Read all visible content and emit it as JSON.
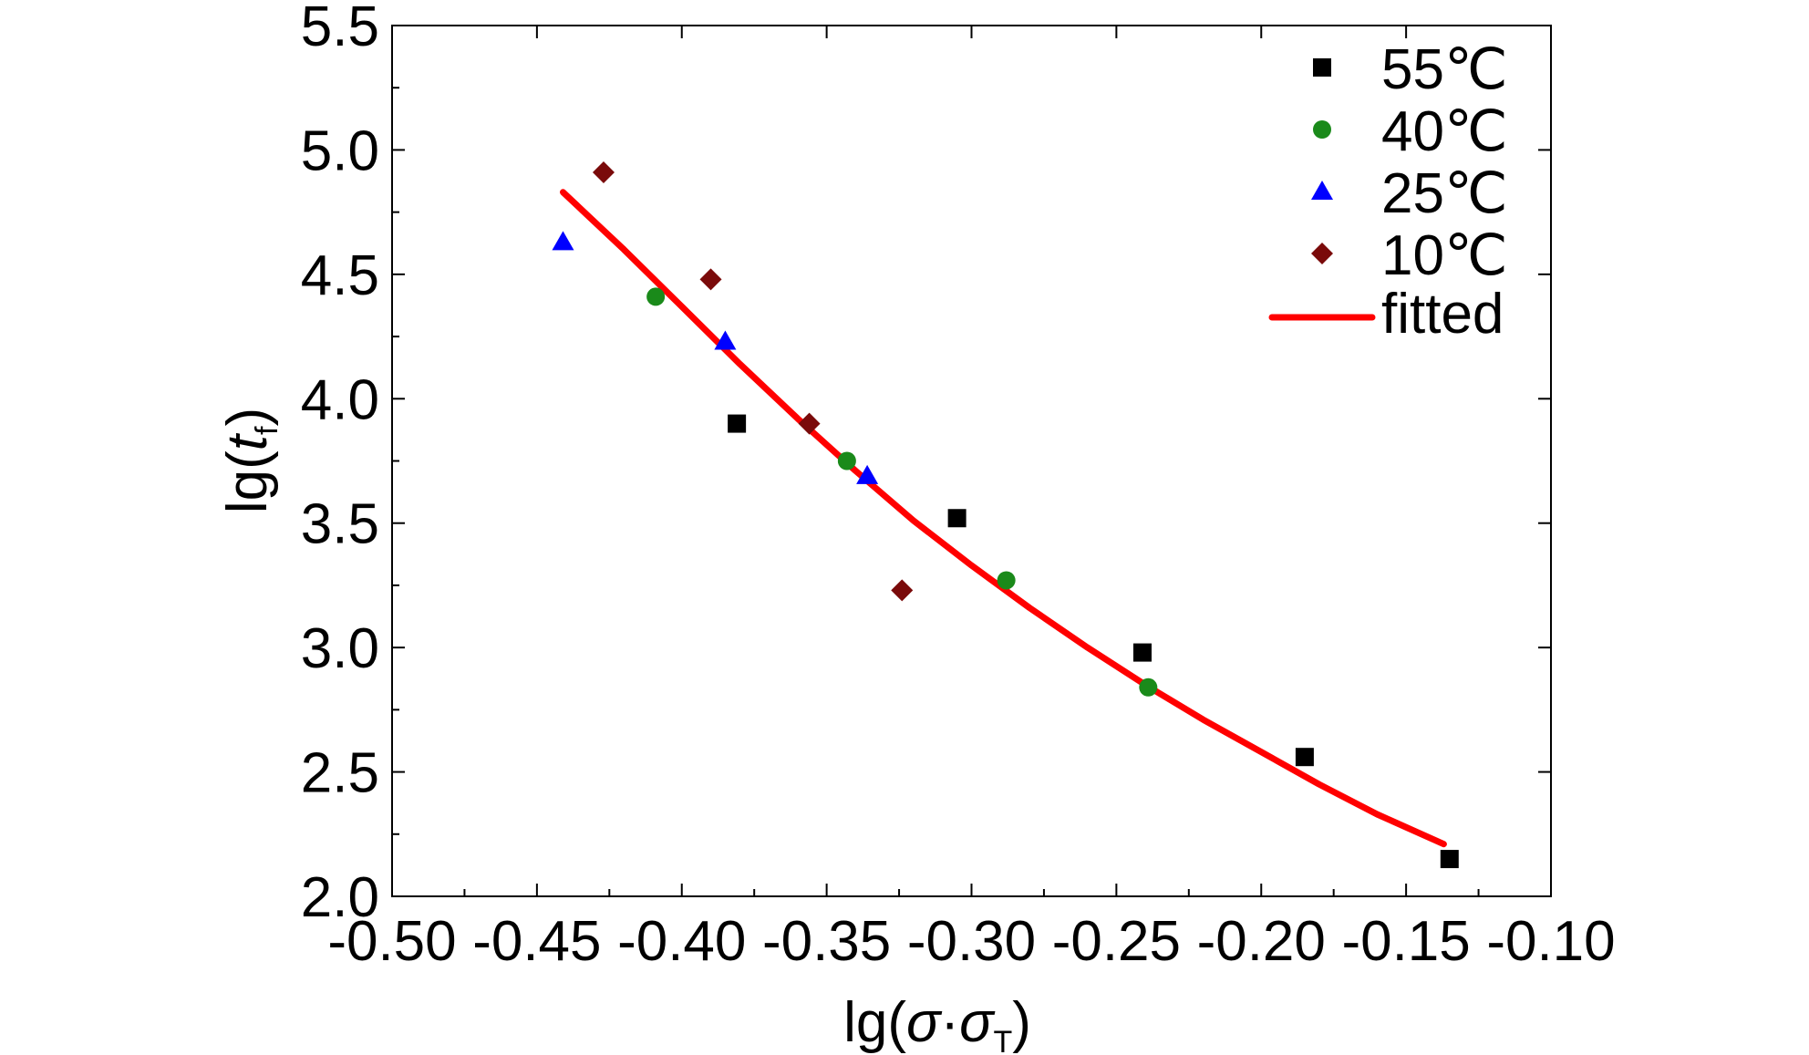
{
  "chart_data": {
    "type": "scatter",
    "xlabel": {
      "prefix": "lg(",
      "var1": "σ",
      "dot": "·",
      "var2": "σ",
      "sub": "T",
      "suffix": ")"
    },
    "ylabel": {
      "prefix": "lg(",
      "var": "t",
      "sub": "f",
      "suffix": ")"
    },
    "xlim": [
      -0.5,
      -0.1
    ],
    "ylim": [
      2.0,
      5.5
    ],
    "xticks": [
      -0.5,
      -0.45,
      -0.4,
      -0.35,
      -0.3,
      -0.25,
      -0.2,
      -0.15,
      -0.1
    ],
    "xtick_labels": [
      "-0.50",
      "-0.45",
      "-0.40",
      "-0.35",
      "-0.30",
      "-0.25",
      "-0.20",
      "-0.15",
      "-0.10"
    ],
    "yticks": [
      2.0,
      2.5,
      3.0,
      3.5,
      4.0,
      4.5,
      5.0,
      5.5
    ],
    "ytick_labels": [
      "2.0",
      "2.5",
      "3.0",
      "3.5",
      "4.0",
      "4.5",
      "5.0",
      "5.5"
    ],
    "grid": false,
    "legend_position": "top-right",
    "series": [
      {
        "name": "55℃",
        "marker": "square",
        "color": "#000000",
        "points": [
          [
            -0.381,
            3.9
          ],
          [
            -0.305,
            3.52
          ],
          [
            -0.241,
            2.98
          ],
          [
            -0.185,
            2.56
          ],
          [
            -0.135,
            2.15
          ]
        ]
      },
      {
        "name": "40℃",
        "marker": "circle",
        "color": "#1a8a1a",
        "points": [
          [
            -0.409,
            4.41
          ],
          [
            -0.343,
            3.75
          ],
          [
            -0.288,
            3.27
          ],
          [
            -0.239,
            2.84
          ]
        ]
      },
      {
        "name": "25℃",
        "marker": "triangle",
        "color": "#0000ff",
        "points": [
          [
            -0.441,
            4.63
          ],
          [
            -0.385,
            4.23
          ],
          [
            -0.336,
            3.69
          ]
        ]
      },
      {
        "name": "10℃",
        "marker": "diamond",
        "color": "#7a0a0a",
        "points": [
          [
            -0.427,
            4.91
          ],
          [
            -0.39,
            4.48
          ],
          [
            -0.356,
            3.9
          ],
          [
            -0.324,
            3.23
          ]
        ]
      }
    ],
    "fit": {
      "name": "fitted",
      "color": "#ff0000",
      "points": [
        [
          -0.441,
          4.83
        ],
        [
          -0.42,
          4.6
        ],
        [
          -0.4,
          4.37
        ],
        [
          -0.38,
          4.14
        ],
        [
          -0.36,
          3.92
        ],
        [
          -0.34,
          3.71
        ],
        [
          -0.32,
          3.51
        ],
        [
          -0.3,
          3.33
        ],
        [
          -0.28,
          3.16
        ],
        [
          -0.26,
          3.0
        ],
        [
          -0.24,
          2.85
        ],
        [
          -0.22,
          2.71
        ],
        [
          -0.2,
          2.58
        ],
        [
          -0.18,
          2.45
        ],
        [
          -0.16,
          2.33
        ],
        [
          -0.137,
          2.21
        ]
      ]
    }
  }
}
